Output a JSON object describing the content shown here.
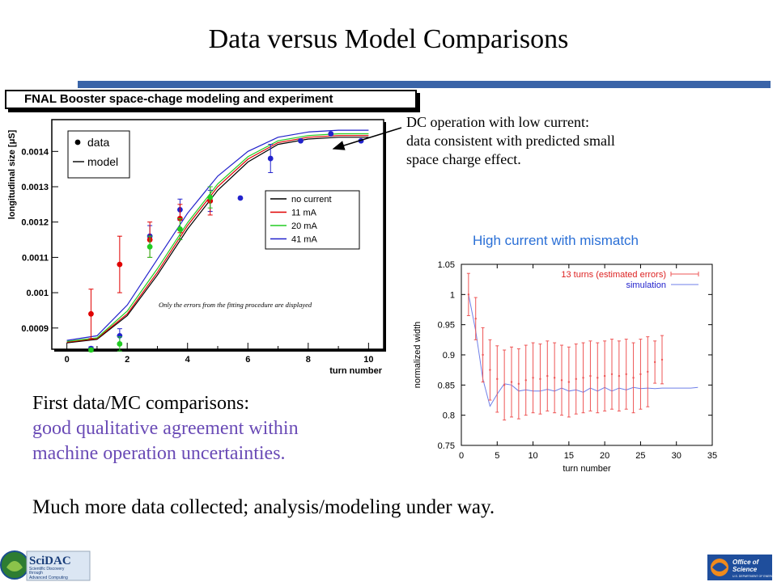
{
  "slide": {
    "title": "Data versus Model Comparisons",
    "dc_note": [
      "DC operation with low current:",
      "data consistent with predicted small",
      "space charge effect."
    ],
    "high_current_label": "High current  with mismatch",
    "first_line": "First data/MC comparisons:",
    "agreement_lines": [
      "good qualitative agreement within",
      "machine operation uncertainties."
    ],
    "more_data": "Much more data collected; analysis/modeling under way.",
    "left_logo_text": [
      "SciDAC",
      "Scientific Discovery",
      "through",
      "Advanced Computing"
    ],
    "right_logo_text": [
      "Office of",
      "Science",
      "U.S. DEPARTMENT OF ENERGY"
    ],
    "colors": {
      "accent_bar": "#3a64a8",
      "purple_text": "#6a4bb6",
      "blue_label": "#2a6fd6"
    }
  },
  "chart_data": [
    {
      "type": "scatter",
      "title": "FNAL Booster space-chage modeling and experiment",
      "xlabel": "turn number",
      "ylabel": "longitudinal size [μS]",
      "xlim": [
        -0.5,
        10.5
      ],
      "ylim": [
        0.00084,
        0.00149
      ],
      "xticks": [
        0,
        2,
        4,
        6,
        8,
        10
      ],
      "yticks": [
        0.0009,
        0.001,
        0.0011,
        0.0012,
        0.0013,
        0.0014
      ],
      "ytick_labels": [
        "0.0009",
        "0.001",
        "0.0011",
        "0.0012",
        "0.0013",
        "0.0014"
      ],
      "annotation": "Only the errors from the fitting procedure are displayed",
      "legend_markers": [
        {
          "label": "data",
          "kind": "dot"
        },
        {
          "label": "model",
          "kind": "line"
        }
      ],
      "model_lines": [
        {
          "name": "no current",
          "color": "#000000",
          "x": [
            0,
            1,
            2,
            3,
            4,
            5,
            6,
            7,
            8,
            9,
            10
          ],
          "y": [
            0.000858,
            0.000868,
            0.000935,
            0.00105,
            0.00118,
            0.00129,
            0.00137,
            0.00142,
            0.001435,
            0.00144,
            0.00144
          ]
        },
        {
          "name": "11 mA",
          "color": "#e00000",
          "x": [
            0,
            1,
            2,
            3,
            4,
            5,
            6,
            7,
            8,
            9,
            10
          ],
          "y": [
            0.00086,
            0.00087,
            0.00094,
            0.001058,
            0.00119,
            0.0013,
            0.001378,
            0.001425,
            0.00144,
            0.001445,
            0.001445
          ]
        },
        {
          "name": "20 mA",
          "color": "#22cc22",
          "x": [
            0,
            1,
            2,
            3,
            4,
            5,
            6,
            7,
            8,
            9,
            10
          ],
          "y": [
            0.000862,
            0.000872,
            0.000948,
            0.001068,
            0.001198,
            0.001308,
            0.001385,
            0.00143,
            0.001445,
            0.00145,
            0.00145
          ]
        },
        {
          "name": "41 mA",
          "color": "#2222cc",
          "x": [
            0,
            1,
            2,
            3,
            4,
            5,
            6,
            7,
            8,
            9,
            10
          ],
          "y": [
            0.000865,
            0.000878,
            0.000965,
            0.001095,
            0.001225,
            0.00133,
            0.0014,
            0.00144,
            0.001455,
            0.00146,
            0.00146
          ]
        }
      ],
      "data_series": [
        {
          "color": "#2222cc",
          "points": [
            [
              0.8,
              0.000842,
              5e-06
            ],
            [
              1.75,
              0.000878,
              2e-05
            ],
            [
              2.75,
              0.00116,
              3e-05
            ],
            [
              3.75,
              0.001235,
              3e-05
            ],
            [
              4.75,
              0.00126,
              3e-05
            ],
            [
              5.75,
              0.001268,
              0
            ],
            [
              6.75,
              0.00138,
              4e-05
            ],
            [
              7.75,
              0.00143,
              0
            ],
            [
              8.75,
              0.00145,
              0
            ],
            [
              9.75,
              0.00143,
              0
            ]
          ]
        },
        {
          "color": "#e00000",
          "points": [
            [
              0.8,
              0.00094,
              7e-05
            ],
            [
              1.75,
              0.00108,
              8e-05
            ],
            [
              2.75,
              0.00115,
              5e-05
            ],
            [
              3.75,
              0.00121,
              4e-05
            ],
            [
              4.75,
              0.00126,
              4e-05
            ]
          ]
        },
        {
          "color": "#22cc22",
          "points": [
            [
              0.8,
              0.000838,
              5e-06
            ],
            [
              1.75,
              0.000855,
              2e-05
            ],
            [
              2.75,
              0.00113,
              3e-05
            ],
            [
              3.75,
              0.00118,
              3e-05
            ],
            [
              4.75,
              0.00127,
              3e-05
            ]
          ]
        }
      ]
    },
    {
      "type": "line",
      "xlabel": "turn number",
      "ylabel": "normalized width",
      "xlim": [
        0,
        35
      ],
      "ylim": [
        0.75,
        1.05
      ],
      "xticks": [
        0,
        5,
        10,
        15,
        20,
        25,
        30,
        35
      ],
      "yticks": [
        0.75,
        0.8,
        0.85,
        0.9,
        0.95,
        1,
        1.05
      ],
      "ytick_labels": [
        "0.75",
        "0.8",
        "0.85",
        "0.9",
        "0.95",
        "1",
        "1.05"
      ],
      "series": [
        {
          "name": "13 turns (estimated errors)",
          "color": "#ee5555",
          "kind": "errorbar",
          "x": [
            1,
            2,
            3,
            4,
            5,
            6,
            7,
            8,
            9,
            10,
            11,
            12,
            13,
            14,
            15,
            16,
            17,
            18,
            19,
            20,
            21,
            22,
            23,
            24,
            25,
            26,
            27,
            28
          ],
          "y": [
            1.0,
            0.96,
            0.9,
            0.875,
            0.86,
            0.85,
            0.855,
            0.852,
            0.858,
            0.862,
            0.86,
            0.865,
            0.862,
            0.858,
            0.855,
            0.86,
            0.862,
            0.865,
            0.862,
            0.865,
            0.868,
            0.865,
            0.868,
            0.862,
            0.868,
            0.872,
            0.888,
            0.892
          ],
          "err": [
            0.035,
            0.035,
            0.045,
            0.05,
            0.055,
            0.058,
            0.058,
            0.058,
            0.058,
            0.058,
            0.058,
            0.058,
            0.058,
            0.058,
            0.058,
            0.058,
            0.058,
            0.058,
            0.058,
            0.058,
            0.058,
            0.058,
            0.058,
            0.058,
            0.058,
            0.058,
            0.035,
            0.04
          ]
        },
        {
          "name": "simulation",
          "color": "#6f7fe8",
          "kind": "line",
          "x": [
            1,
            2,
            3,
            4,
            5,
            6,
            7,
            8,
            9,
            10,
            11,
            12,
            13,
            14,
            15,
            16,
            17,
            18,
            19,
            20,
            21,
            22,
            23,
            24,
            25,
            26,
            27,
            28,
            29,
            30,
            31,
            32,
            33
          ],
          "y": [
            1.0,
            0.94,
            0.86,
            0.815,
            0.835,
            0.852,
            0.85,
            0.84,
            0.842,
            0.84,
            0.84,
            0.843,
            0.84,
            0.845,
            0.84,
            0.842,
            0.838,
            0.845,
            0.84,
            0.846,
            0.84,
            0.845,
            0.842,
            0.846,
            0.844,
            0.845,
            0.844,
            0.845,
            0.845,
            0.845,
            0.845,
            0.845,
            0.846
          ]
        }
      ]
    }
  ]
}
